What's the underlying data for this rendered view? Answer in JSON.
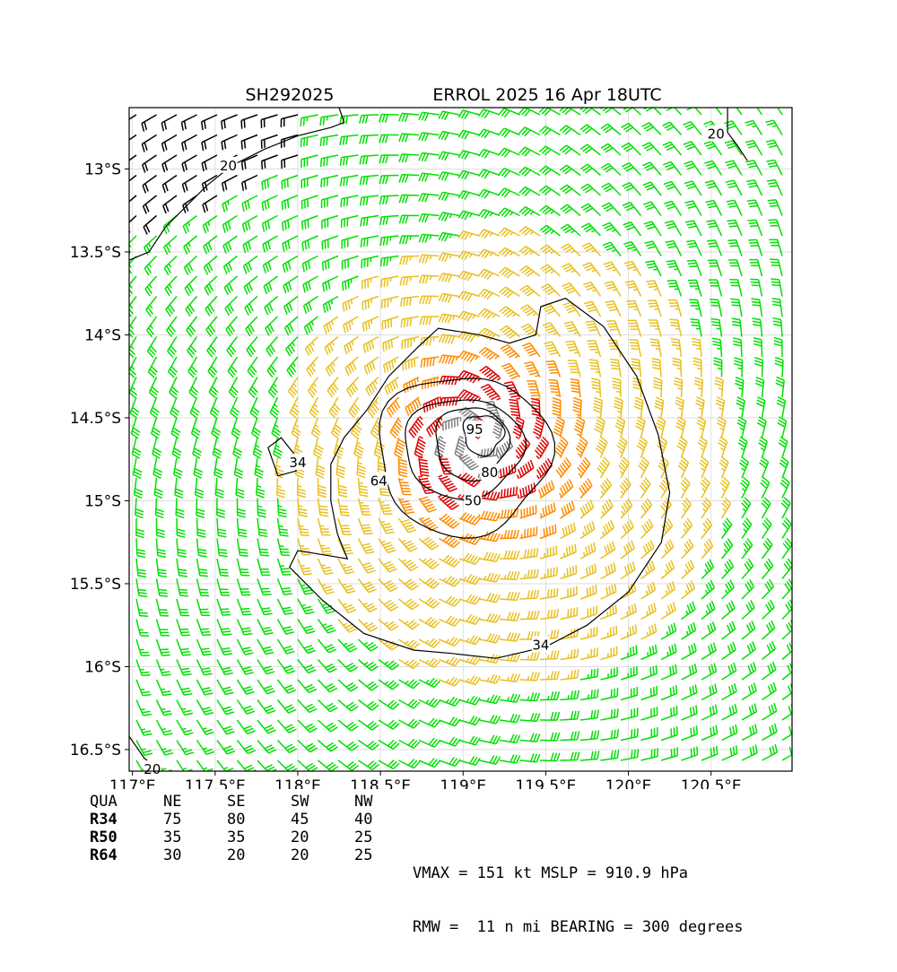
{
  "title_left": "SH292025",
  "title_right": "ERROL 2025 16 Apr 18UTC",
  "x_ticks": [
    "117°E",
    "117.5°E",
    "118°E",
    "118.5°E",
    "119°E",
    "119.5°E",
    "120°E",
    "120.5°E"
  ],
  "y_ticks": [
    "13°S",
    "13.5°S",
    "14°S",
    "14.5°S",
    "15°S",
    "15.5°S",
    "16°S",
    "16.5°S"
  ],
  "colors": {
    "wind_lt34": "#00e000",
    "wind_34_50": "#e8c020",
    "wind_50_64": "#ff8c00",
    "wind_64_95": "#e00000",
    "wind_ge95": "#808080",
    "contour": "#000000",
    "low_wind_barbs": "#000000"
  },
  "chart_data": {
    "type": "wind barb map with isotach contours",
    "x_range_lon": [
      116.98,
      120.99
    ],
    "y_range_lat": [
      -12.63,
      -16.63
    ],
    "grid": true,
    "storm_center": {
      "lon": 119.05,
      "lat": -14.62
    },
    "contour_levels_kt": [
      20,
      34,
      50,
      64,
      80,
      95
    ],
    "contour_labels": [
      {
        "text": "20",
        "lon": 117.58,
        "lat": -12.98
      },
      {
        "text": "20",
        "lon": 120.53,
        "lat": -12.79
      },
      {
        "text": "20",
        "lon": 117.12,
        "lat": -16.62
      },
      {
        "text": "34",
        "lon": 118.0,
        "lat": -14.77
      },
      {
        "text": "34",
        "lon": 119.47,
        "lat": -15.87
      },
      {
        "text": "50",
        "lon": 119.06,
        "lat": -15.0
      },
      {
        "text": "64",
        "lon": 118.49,
        "lat": -14.88
      },
      {
        "text": "80",
        "lon": 119.16,
        "lat": -14.83
      },
      {
        "text": "95",
        "lon": 119.07,
        "lat": -14.57
      }
    ]
  },
  "radii": {
    "header": [
      "QUA",
      "NE",
      "SE",
      "SW",
      "NW"
    ],
    "rows": [
      [
        "R34",
        "75",
        "80",
        "45",
        "40"
      ],
      [
        "R50",
        "35",
        "35",
        "20",
        "25"
      ],
      [
        "R64",
        "30",
        "20",
        "20",
        "25"
      ]
    ]
  },
  "stats": {
    "line1": "VMAX = 151 kt MSLP = 910.9 hPa",
    "line2": "RMW =  11 n mi BEARING = 300 degrees"
  }
}
